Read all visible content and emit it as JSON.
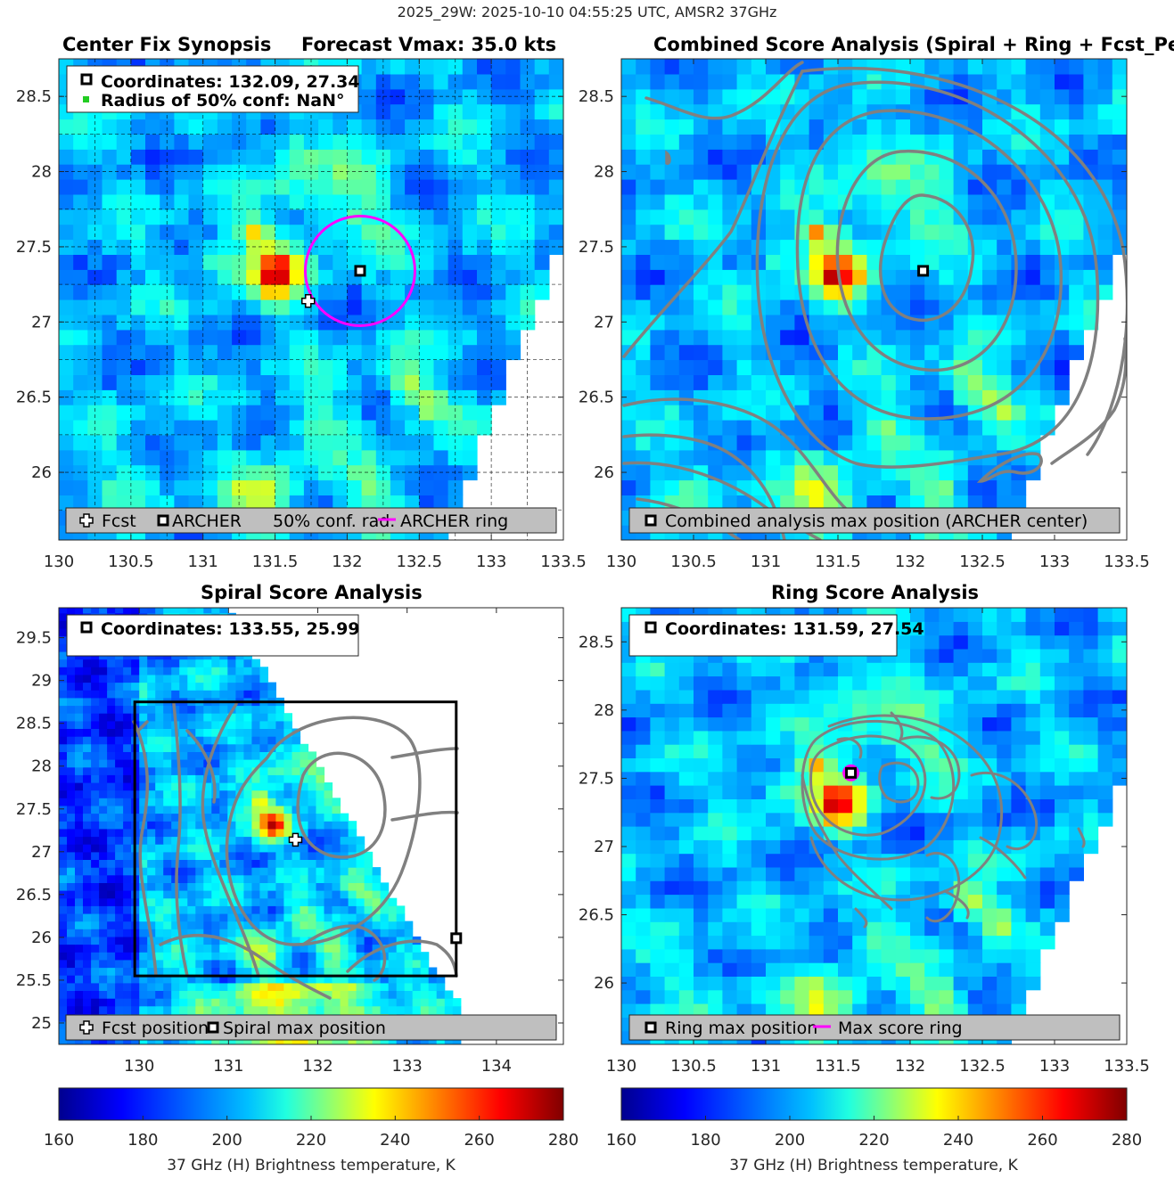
{
  "figure": {
    "supertitle": "2025_29W: 2025-10-10 04:55:25 UTC, AMSR2 37GHz"
  },
  "colors": {
    "jet_colormap": [
      "#00008f",
      "#0000ff",
      "#0080ff",
      "#00ffff",
      "#80ff80",
      "#ffff00",
      "#ff8000",
      "#ff0000",
      "#800000"
    ],
    "contour": "#808080",
    "ring": "#ff00ff",
    "legend_bg": "#bfbfbf"
  },
  "chart_data": [
    {
      "id": "p1",
      "type": "heatmap",
      "title_left": "Center Fix Synopsis",
      "title_right": "Forecast Vmax: 35.0 kts",
      "xlim": [
        130,
        133.5
      ],
      "ylim": [
        25.55,
        28.75
      ],
      "xticks": [
        "130",
        "130.5",
        "131",
        "131.5",
        "132",
        "132.5",
        "133",
        "133.5"
      ],
      "yticks": [
        "26",
        "26.5",
        "27",
        "27.5",
        "28",
        "28.5"
      ],
      "grid": true,
      "info_box": [
        "Coordinates: 132.09, 27.34",
        "Radius of 50% conf: NaN°"
      ],
      "legend": [
        "Fcst",
        "ARCHER",
        "50% conf. rad.",
        "ARCHER ring"
      ],
      "archer_center": [
        132.09,
        27.34
      ],
      "fcst_position": [
        131.73,
        27.14
      ],
      "ring_radius_deg": 0.38
    },
    {
      "id": "p2",
      "type": "heatmap",
      "title": "Combined Score Analysis (Spiral + Ring + Fcst_Pe",
      "xlim": [
        130,
        133.5
      ],
      "ylim": [
        25.55,
        28.75
      ],
      "xticks": [
        "130",
        "130.5",
        "131",
        "131.5",
        "132",
        "132.5",
        "133",
        "133.5"
      ],
      "yticks": [
        "26",
        "26.5",
        "27",
        "27.5",
        "28",
        "28.5"
      ],
      "grid": false,
      "legend": [
        "Combined analysis max position (ARCHER center)"
      ],
      "max_position": [
        132.09,
        27.34
      ]
    },
    {
      "id": "p3",
      "type": "heatmap",
      "title": "Spiral Score Analysis",
      "xlim": [
        129.1,
        134.75
      ],
      "ylim": [
        24.75,
        29.85
      ],
      "xticks": [
        "130",
        "131",
        "132",
        "133",
        "134"
      ],
      "yticks": [
        "25",
        "25.5",
        "26",
        "26.5",
        "27",
        "27.5",
        "28",
        "28.5",
        "29",
        "29.5"
      ],
      "grid": false,
      "info_box": [
        "Coordinates: 133.55, 25.99"
      ],
      "legend": [
        "Fcst position",
        "Spiral max position"
      ],
      "fcst_position": [
        131.75,
        27.14
      ],
      "spiral_max_position": [
        133.55,
        25.99
      ],
      "analysis_box": {
        "x": [
          129.95,
          133.55
        ],
        "y": [
          25.55,
          28.75
        ]
      }
    },
    {
      "id": "p4",
      "type": "heatmap",
      "title": "Ring Score Analysis",
      "xlim": [
        130,
        133.5
      ],
      "ylim": [
        25.55,
        28.75
      ],
      "xticks": [
        "130",
        "130.5",
        "131",
        "131.5",
        "132",
        "132.5",
        "133",
        "133.5"
      ],
      "yticks": [
        "26",
        "26.5",
        "27",
        "27.5",
        "28",
        "28.5"
      ],
      "grid": false,
      "info_box": [
        "Coordinates: 131.59, 27.54"
      ],
      "legend": [
        "Ring max position",
        "Max score ring"
      ],
      "ring_max_position": [
        131.59,
        27.54
      ]
    }
  ],
  "colorbars": [
    {
      "ticks": [
        "160",
        "180",
        "200",
        "220",
        "240",
        "260",
        "280"
      ],
      "label": "37 GHz (H) Brightness temperature, K",
      "range": [
        160,
        280
      ]
    },
    {
      "ticks": [
        "160",
        "180",
        "200",
        "220",
        "240",
        "260",
        "280"
      ],
      "label": "37 GHz (H) Brightness temperature, K",
      "range": [
        160,
        280
      ]
    }
  ]
}
